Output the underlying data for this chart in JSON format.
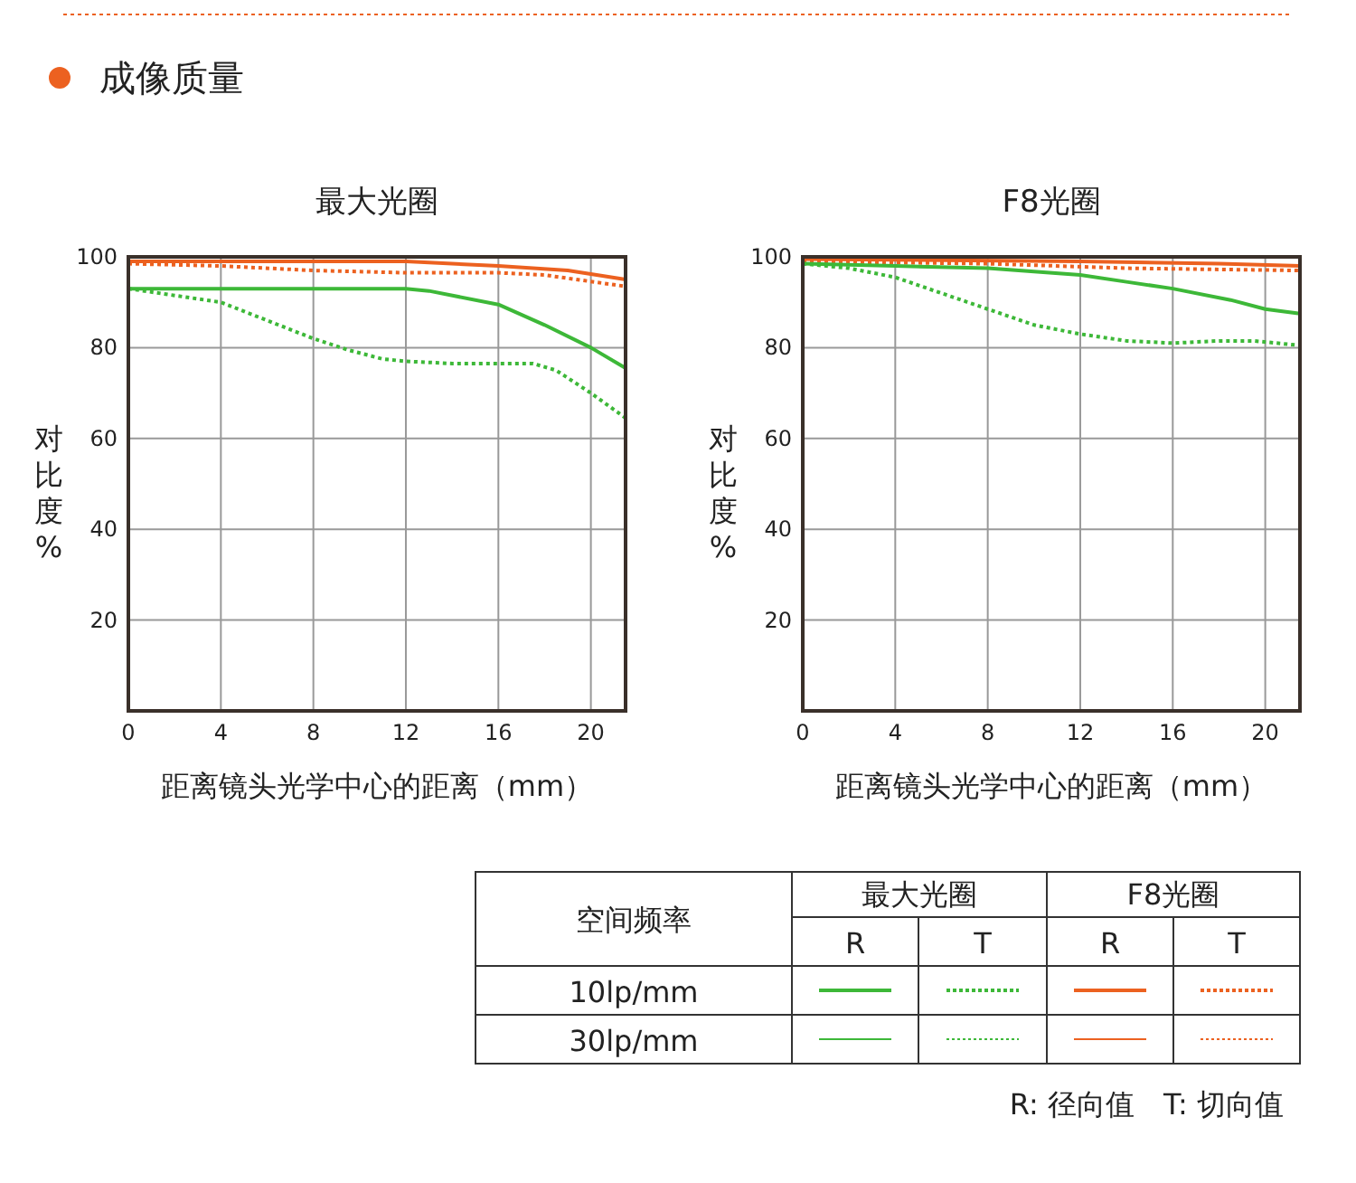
{
  "chart_data": [
    {
      "type": "line",
      "title": "最大光圈",
      "xlabel": "距离镜头光学中心的距离（mm）",
      "ylabel": "对比度%",
      "xlim": [
        0,
        21.5
      ],
      "ylim": [
        0,
        100
      ],
      "xticks": [
        0,
        4,
        8,
        12,
        16,
        20
      ],
      "yticks": [
        20,
        40,
        60,
        80,
        100
      ],
      "grid": true,
      "series": [
        {
          "color": "#ec6120",
          "line_style": "solid",
          "x": [
            0,
            4,
            8,
            12,
            16,
            19,
            21.5
          ],
          "values": [
            99,
            99,
            99,
            99,
            98,
            97,
            95
          ]
        },
        {
          "color": "#ec6120",
          "line_style": "dotted",
          "x": [
            0,
            4,
            8,
            12,
            16,
            18,
            21.5
          ],
          "values": [
            98.5,
            98,
            97,
            96.5,
            96.5,
            96,
            93.5
          ]
        },
        {
          "color": "#3db838",
          "line_style": "solid",
          "x": [
            0,
            4,
            8,
            12,
            13,
            16,
            18,
            20,
            21.5
          ],
          "values": [
            93,
            93,
            93,
            93,
            92.5,
            89.5,
            85,
            80,
            75.5
          ]
        },
        {
          "color": "#3db838",
          "line_style": "dotted",
          "x": [
            0,
            2,
            4,
            6,
            8,
            9.5,
            11,
            12,
            14,
            16,
            17.5,
            18.5,
            20,
            21.5
          ],
          "values": [
            93,
            91.5,
            90,
            86,
            82,
            79.5,
            77.5,
            77,
            76.5,
            76.5,
            76.5,
            75,
            70,
            64.5
          ]
        }
      ]
    },
    {
      "type": "line",
      "title": "F8光圈",
      "xlabel": "距离镜头光学中心的距离（mm）",
      "ylabel": "对比度%",
      "xlim": [
        0,
        21.5
      ],
      "ylim": [
        0,
        100
      ],
      "xticks": [
        0,
        4,
        8,
        12,
        16,
        20
      ],
      "yticks": [
        20,
        40,
        60,
        80,
        100
      ],
      "grid": true,
      "series": [
        {
          "color": "#ec6120",
          "line_style": "solid",
          "x": [
            0,
            12,
            18,
            21.5
          ],
          "values": [
            99.5,
            99,
            98.5,
            98
          ]
        },
        {
          "color": "#ec6120",
          "line_style": "dotted",
          "x": [
            0,
            8,
            14,
            21.5
          ],
          "values": [
            99,
            98.5,
            97.5,
            97
          ]
        },
        {
          "color": "#3db838",
          "line_style": "solid",
          "x": [
            0,
            4,
            8,
            12,
            14,
            16,
            18.5,
            20,
            21.5
          ],
          "values": [
            98.5,
            98,
            97.5,
            96,
            94.5,
            93,
            90.5,
            88.5,
            87.5
          ]
        },
        {
          "color": "#3db838",
          "line_style": "dotted",
          "x": [
            0,
            2,
            4,
            6,
            8,
            10,
            12,
            14,
            16,
            18,
            19.5,
            21.5
          ],
          "values": [
            98.5,
            97.5,
            95.5,
            92,
            88.5,
            85,
            83,
            81.5,
            81,
            81.5,
            81.5,
            80.5
          ]
        }
      ]
    },
    {
      "type": "other",
      "title": "成像质量",
      "annotations": [
        "空间频率",
        "最大光圈",
        "F8光圈",
        "R",
        "T",
        "R",
        "T",
        "10lp/mm",
        "30lp/mm",
        "R: 径向值　T: 切向值"
      ]
    }
  ]
}
